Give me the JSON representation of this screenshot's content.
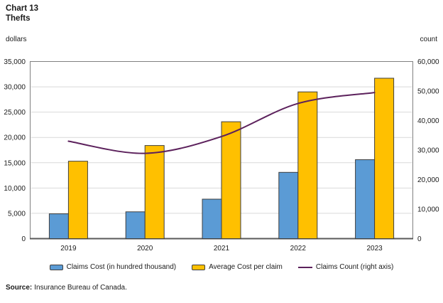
{
  "header": {
    "chart_label": "Chart 13",
    "title": "Thefts"
  },
  "chart_data": {
    "type": "bar+line",
    "categories": [
      "2019",
      "2020",
      "2021",
      "2022",
      "2023"
    ],
    "series": [
      {
        "name": "Claims Cost (in hundred thousand)",
        "type": "bar",
        "axis": "left",
        "color": "#5B9BD5",
        "border_color": "#3F3F3F",
        "values": [
          4900,
          5300,
          7800,
          13100,
          15600
        ]
      },
      {
        "name": "Average Cost per claim",
        "type": "bar",
        "axis": "left",
        "color": "#FFC000",
        "border_color": "#3F3F3F",
        "values": [
          15300,
          18400,
          23100,
          29000,
          31700
        ]
      },
      {
        "name": "Claims Count (right axis)",
        "type": "line",
        "axis": "right",
        "color": "#5C215C",
        "values": [
          33000,
          28900,
          34600,
          45800,
          49500
        ]
      }
    ],
    "left_axis": {
      "label": "dollars",
      "min": 0,
      "max": 35000,
      "step": 5000
    },
    "right_axis": {
      "label": "count",
      "min": 0,
      "max": 60000,
      "step": 10000
    },
    "grid": true,
    "gridline_color": "#D9D9D9",
    "plot_border_color": "#808080",
    "bottom_axis_color": "#595959",
    "legend_position": "bottom"
  },
  "source": {
    "label": "Source:",
    "text": "Insurance Bureau of Canada."
  }
}
